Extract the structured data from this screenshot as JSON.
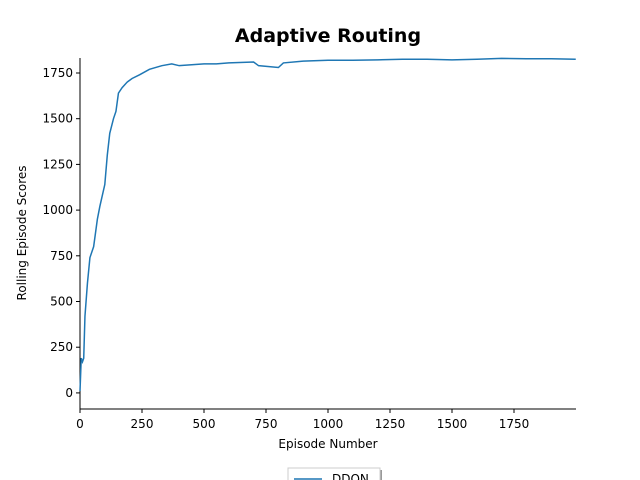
{
  "chart_data": {
    "type": "line",
    "title": "Adaptive Routing",
    "x_label": "Episode Number",
    "y_label": "Rolling Episode Scores",
    "x": [
      0,
      5,
      10,
      15,
      20,
      30,
      40,
      55,
      70,
      80,
      100,
      110,
      120,
      135,
      145,
      155,
      170,
      190,
      210,
      240,
      280,
      330,
      370,
      400,
      450,
      500,
      550,
      600,
      700,
      720,
      800,
      820,
      900,
      1000,
      1100,
      1200,
      1300,
      1400,
      1500,
      1600,
      1700,
      1800,
      1900,
      1999
    ],
    "series": [
      {
        "name": "DDQN",
        "color": "#1f77b4",
        "values": [
          10,
          190,
          170,
          190,
          420,
          600,
          740,
          800,
          950,
          1020,
          1140,
          1300,
          1420,
          1500,
          1540,
          1640,
          1670,
          1700,
          1720,
          1740,
          1770,
          1790,
          1800,
          1790,
          1795,
          1800,
          1800,
          1805,
          1810,
          1790,
          1780,
          1805,
          1815,
          1820,
          1820,
          1822,
          1825,
          1825,
          1822,
          1825,
          1830,
          1828,
          1828,
          1825
        ]
      }
    ],
    "xlim": [
      0,
      2000
    ],
    "ylim": [
      -88,
      1832
    ],
    "xticks": [
      0,
      250,
      500,
      750,
      1000,
      1250,
      1500,
      1750
    ],
    "yticks": [
      0,
      250,
      500,
      750,
      1000,
      1250,
      1500,
      1750
    ],
    "legend": "bottom"
  }
}
